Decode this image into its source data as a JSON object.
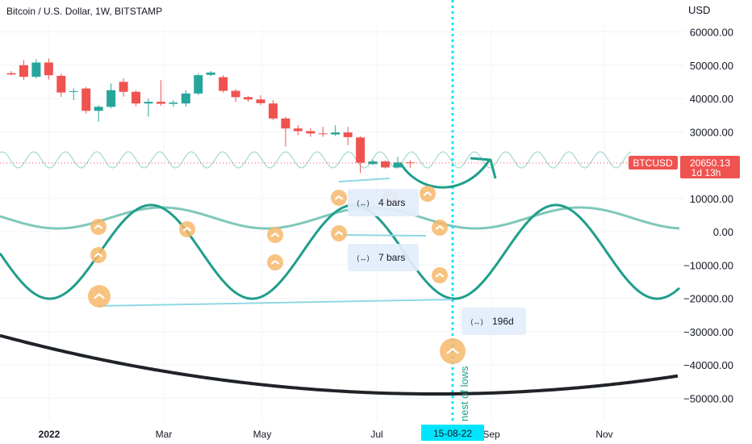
{
  "header": {
    "title": "Bitcoin / U.S. Dollar, 1W, BITSTAMP",
    "currency": "USD"
  },
  "y_ticks": [
    "60000.00",
    "50000.00",
    "40000.00",
    "30000.00",
    "10000.00",
    "0.00",
    "−10000.00",
    "−20000.00",
    "−30000.00",
    "−40000.00",
    "−50000.00"
  ],
  "y_tick_values": [
    60000,
    50000,
    40000,
    30000,
    10000,
    0,
    -10000,
    -20000,
    -30000,
    -40000,
    -50000
  ],
  "x_ticks": [
    {
      "label": "2022",
      "bold": true
    },
    {
      "label": "Mar",
      "bold": false
    },
    {
      "label": "May",
      "bold": false
    },
    {
      "label": "Jul",
      "bold": false
    },
    {
      "label": "Sep",
      "bold": false
    },
    {
      "label": "Nov",
      "bold": false
    }
  ],
  "price_tag": {
    "symbol": "BTCUSD",
    "price": "20650.13",
    "countdown": "1d 13h"
  },
  "highlighted_date": "15-08-22",
  "annotation_text": "nest of lows",
  "measures": [
    "4 bars",
    "7 bars",
    "196d"
  ],
  "colors": {
    "bull": "#26a69a",
    "bear": "#ef5350",
    "wave_light": "#8fd3c9",
    "wave_mid": "#7fc8ba",
    "wave_dark": "#1f9e8b",
    "curve": "#1f2328",
    "cyan": "#00e5ff",
    "marker": "#f7b96b"
  },
  "chart_data": {
    "type": "candlestick",
    "title": "Bitcoin / U.S. Dollar, 1W, BITSTAMP",
    "ylabel": "USD",
    "ylim": [
      -55000,
      68000
    ],
    "last_price": 20650.13,
    "candles": [
      {
        "o": 47600,
        "h": 48200,
        "l": 47000,
        "c": 47200
      },
      {
        "o": 50000,
        "h": 51500,
        "l": 45500,
        "c": 46500
      },
      {
        "o": 46500,
        "h": 51800,
        "l": 46000,
        "c": 50800
      },
      {
        "o": 50800,
        "h": 52000,
        "l": 45700,
        "c": 47000
      },
      {
        "o": 46800,
        "h": 47500,
        "l": 40500,
        "c": 41800
      },
      {
        "o": 42000,
        "h": 43000,
        "l": 39500,
        "c": 42200
      },
      {
        "o": 43000,
        "h": 43500,
        "l": 35500,
        "c": 36300
      },
      {
        "o": 36300,
        "h": 38000,
        "l": 33000,
        "c": 37500
      },
      {
        "o": 37500,
        "h": 44500,
        "l": 37000,
        "c": 42500
      },
      {
        "o": 45000,
        "h": 46000,
        "l": 40500,
        "c": 42000
      },
      {
        "o": 42000,
        "h": 42500,
        "l": 37700,
        "c": 38500
      },
      {
        "o": 38500,
        "h": 40000,
        "l": 34500,
        "c": 39000
      },
      {
        "o": 39000,
        "h": 45500,
        "l": 37800,
        "c": 38400
      },
      {
        "o": 38400,
        "h": 39500,
        "l": 37500,
        "c": 38800
      },
      {
        "o": 38500,
        "h": 42500,
        "l": 37500,
        "c": 41500
      },
      {
        "o": 41500,
        "h": 47500,
        "l": 41000,
        "c": 47000
      },
      {
        "o": 47100,
        "h": 48300,
        "l": 46700,
        "c": 47800
      },
      {
        "o": 46400,
        "h": 47000,
        "l": 41800,
        "c": 42300
      },
      {
        "o": 42300,
        "h": 42800,
        "l": 39000,
        "c": 40400
      },
      {
        "o": 40400,
        "h": 40800,
        "l": 39000,
        "c": 39700
      },
      {
        "o": 39700,
        "h": 41000,
        "l": 38000,
        "c": 38600
      },
      {
        "o": 38500,
        "h": 39500,
        "l": 33500,
        "c": 34000
      },
      {
        "o": 34000,
        "h": 34500,
        "l": 25500,
        "c": 31000
      },
      {
        "o": 31000,
        "h": 32000,
        "l": 29000,
        "c": 30200
      },
      {
        "o": 30200,
        "h": 31000,
        "l": 28500,
        "c": 29500
      },
      {
        "o": 29500,
        "h": 31500,
        "l": 28500,
        "c": 29300
      },
      {
        "o": 29200,
        "h": 32000,
        "l": 28700,
        "c": 29800
      },
      {
        "o": 29800,
        "h": 31500,
        "l": 26000,
        "c": 28400
      },
      {
        "o": 28300,
        "h": 28700,
        "l": 17600,
        "c": 20700
      },
      {
        "o": 20300,
        "h": 21600,
        "l": 20000,
        "c": 21100
      },
      {
        "o": 21100,
        "h": 21400,
        "l": 19000,
        "c": 19300
      },
      {
        "o": 19300,
        "h": 22500,
        "l": 19000,
        "c": 20800
      },
      {
        "o": 20800,
        "h": 21400,
        "l": 19200,
        "c": 20650
      }
    ]
  }
}
